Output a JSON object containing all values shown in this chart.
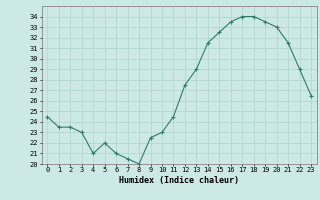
{
  "x": [
    0,
    1,
    2,
    3,
    4,
    5,
    6,
    7,
    8,
    9,
    10,
    11,
    12,
    13,
    14,
    15,
    16,
    17,
    18,
    19,
    20,
    21,
    22,
    23
  ],
  "y": [
    24.5,
    23.5,
    23.5,
    23.0,
    21.0,
    22.0,
    21.0,
    20.5,
    20.0,
    22.5,
    23.0,
    24.5,
    27.5,
    29.0,
    31.5,
    32.5,
    33.5,
    34.0,
    34.0,
    33.5,
    33.0,
    31.5,
    29.0,
    26.5
  ],
  "line_color": "#2e7d6b",
  "marker": "+",
  "bg_color": "#cce9e5",
  "grid_color": "#aed4cf",
  "xlabel": "Humidex (Indice chaleur)",
  "xlim": [
    -0.5,
    23.5
  ],
  "ylim": [
    20,
    35
  ],
  "yticks": [
    20,
    21,
    22,
    23,
    24,
    25,
    26,
    27,
    28,
    29,
    30,
    31,
    32,
    33,
    34
  ],
  "xticks": [
    0,
    1,
    2,
    3,
    4,
    5,
    6,
    7,
    8,
    9,
    10,
    11,
    12,
    13,
    14,
    15,
    16,
    17,
    18,
    19,
    20,
    21,
    22,
    23
  ],
  "tick_fontsize": 5.0,
  "label_fontsize": 6.0
}
